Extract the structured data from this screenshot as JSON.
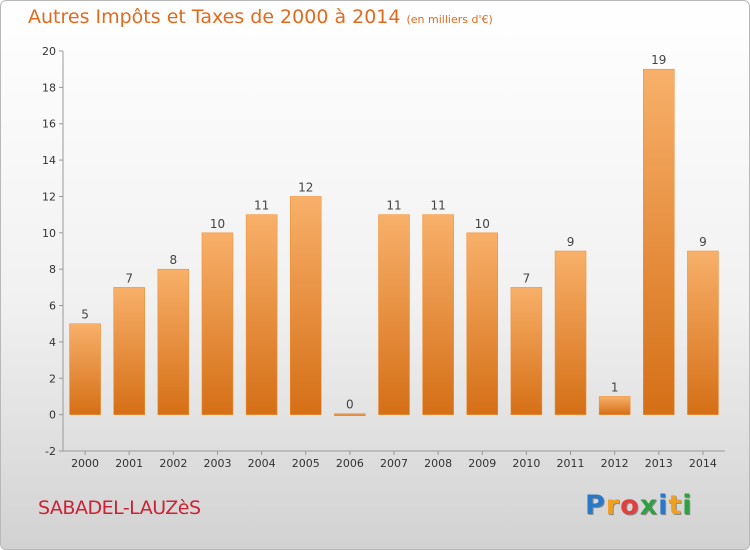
{
  "chart_data": {
    "type": "bar",
    "title": "Autres Impôts et Taxes de 2000 à 2014",
    "subtitle": "(en milliers d'€)",
    "categories": [
      "2000",
      "2001",
      "2002",
      "2003",
      "2004",
      "2005",
      "2006",
      "2007",
      "2008",
      "2009",
      "2010",
      "2011",
      "2012",
      "2013",
      "2014"
    ],
    "values": [
      5,
      7,
      8,
      10,
      11,
      12,
      0,
      11,
      11,
      10,
      7,
      9,
      1,
      19,
      9
    ],
    "ylim": [
      -2,
      20
    ],
    "yticks": [
      -2,
      0,
      2,
      4,
      6,
      8,
      10,
      12,
      14,
      16,
      18,
      20
    ],
    "xlabel": "",
    "ylabel": "",
    "grid": false,
    "bar_color": "#f08a2a",
    "bar_color_light": "#f8b06a",
    "bar_color_dark": "#d56f16"
  },
  "commune": "SABADEL-LAUZèS",
  "brand": {
    "letters": [
      "P",
      "r",
      "o",
      "x",
      "i",
      "t",
      "i"
    ],
    "colors": [
      "#2a78c8",
      "#f0a020",
      "#e04040",
      "#30a040",
      "#2a78c8",
      "#f0a020",
      "#30a040"
    ]
  }
}
